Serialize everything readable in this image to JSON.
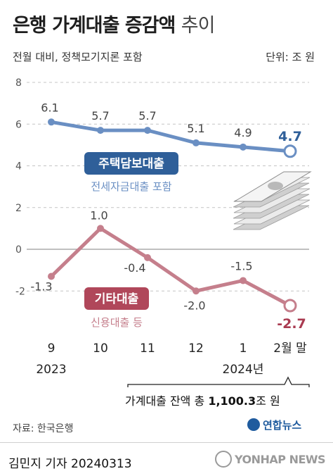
{
  "header": {
    "title_main": "은행 가계대출 증감액",
    "title_tail": "추이",
    "subtitle": "전월 대비, 정책모기지론 포함",
    "unit": "단위: 조 원"
  },
  "chart_data": {
    "type": "line",
    "categories": [
      "9",
      "10",
      "11",
      "12",
      "1",
      "2월 말"
    ],
    "year_labels": [
      "2023",
      "2024년"
    ],
    "ylim": [
      -3,
      8
    ],
    "yticks": [
      8,
      6,
      4,
      2,
      0,
      -2
    ],
    "grid": "horizontal",
    "series": [
      {
        "name": "주택담보대출",
        "note": "전세자금대출 포함",
        "color": "#6a8fc3",
        "label_bg": "#2f5f99",
        "values": [
          6.1,
          5.7,
          5.7,
          5.1,
          4.9,
          4.7
        ],
        "value_labels": [
          "6.1",
          "5.7",
          "5.7",
          "5.1",
          "4.9",
          "4.7"
        ]
      },
      {
        "name": "기타대출",
        "note": "신용대출 등",
        "color": "#c57f8c",
        "label_bg": "#b0475a",
        "values": [
          -1.3,
          1.0,
          -0.4,
          -2.0,
          -1.5,
          -2.7
        ],
        "value_labels": [
          "-1.3",
          "1.0",
          "-0.4",
          "-2.0",
          "-1.5",
          "-2.7"
        ]
      }
    ]
  },
  "balance": {
    "prefix": "가계대출 잔액 총 ",
    "value": "1,100.3",
    "suffix": "조 원"
  },
  "source": "자료: 한국은행",
  "logo": "연합뉴스",
  "byline": "김민지 기자  20240313",
  "watermark": "YONHAP NEWS"
}
